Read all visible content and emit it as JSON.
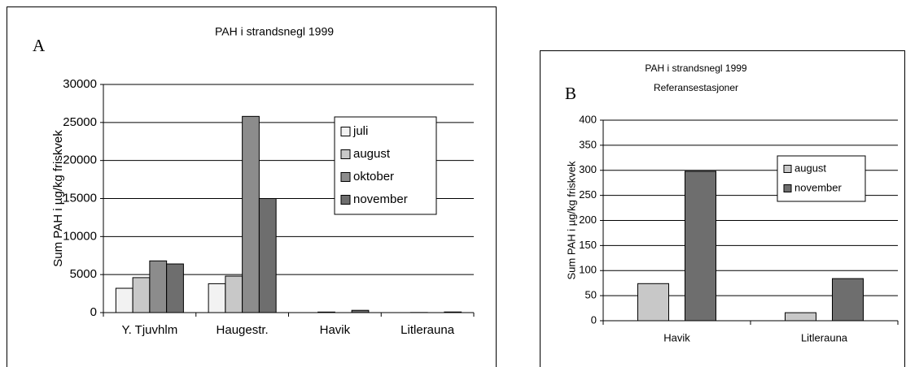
{
  "chart_data": [
    {
      "type": "bar",
      "title": "PAH i strandsnegl 1999",
      "panel_label": "A",
      "ylabel": "Sum PAH i µg/kg friskvek",
      "categories": [
        "Y. Tjuvhlm",
        "Haugestr.",
        "Havik",
        "Litlerauna"
      ],
      "series": [
        {
          "name": "juli",
          "color": "#f2f2f2",
          "values": [
            3200,
            3800,
            null,
            null
          ]
        },
        {
          "name": "august",
          "color": "#c8c8c8",
          "values": [
            4600,
            4800,
            74,
            16
          ]
        },
        {
          "name": "oktober",
          "color": "#8c8c8c",
          "values": [
            6800,
            25800,
            null,
            null
          ]
        },
        {
          "name": "november",
          "color": "#6e6e6e",
          "values": [
            6400,
            15000,
            298,
            84
          ]
        }
      ],
      "ylim": [
        0,
        30000
      ],
      "yticks": [
        0,
        5000,
        10000,
        15000,
        20000,
        25000,
        30000
      ],
      "grid": true
    },
    {
      "type": "bar",
      "title": "PAH i strandsnegl 1999",
      "subtitle": "Referansestasjoner",
      "panel_label": "B",
      "ylabel": "Sum PAH i µg/kg friskvek",
      "categories": [
        "Havik",
        "Litlerauna"
      ],
      "series": [
        {
          "name": "august",
          "color": "#c8c8c8",
          "values": [
            74,
            16
          ]
        },
        {
          "name": "november",
          "color": "#6e6e6e",
          "values": [
            298,
            84
          ]
        }
      ],
      "ylim": [
        0,
        400
      ],
      "yticks": [
        0,
        50,
        100,
        150,
        200,
        250,
        300,
        350,
        400
      ],
      "grid": true
    }
  ]
}
